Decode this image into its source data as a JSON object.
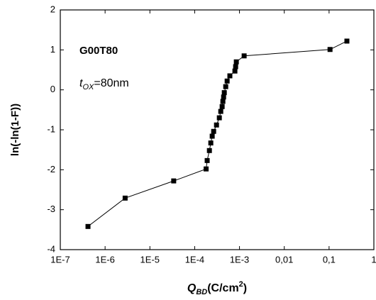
{
  "chart_data": {
    "type": "line",
    "marker": "square",
    "color": "#000000",
    "ylabel": "ln(-ln(1-F))",
    "xlabel": {
      "main": "Q",
      "sub": "BD",
      "unit": "(C/cm",
      "sup": "2",
      "close": ")"
    },
    "annotations": {
      "sample": "G00T80",
      "thickness": {
        "main": "t",
        "sub": "OX",
        "rest": "=80nm"
      }
    },
    "log_x": true,
    "xlim": [
      1e-07,
      1
    ],
    "ylim": [
      -4,
      2
    ],
    "xticks": [
      {
        "value": 1e-07,
        "label": "1E-7"
      },
      {
        "value": 1e-06,
        "label": "1E-6"
      },
      {
        "value": 1e-05,
        "label": "1E-5"
      },
      {
        "value": 0.0001,
        "label": "1E-4"
      },
      {
        "value": 0.001,
        "label": "1E-3"
      },
      {
        "value": 0.01,
        "label": "0,01"
      },
      {
        "value": 0.1,
        "label": "0,1"
      },
      1
    ],
    "yticks": [
      2,
      1,
      0,
      -1,
      -2,
      -3,
      -4
    ],
    "x": [
      4.15e-07,
      2.8e-06,
      3.4e-05,
      0.00018,
      0.00019,
      0.000213,
      0.000229,
      0.000246,
      0.000265,
      0.000307,
      0.000355,
      0.000382,
      0.00041,
      0.000426,
      0.000442,
      0.000458,
      0.000493,
      0.00053,
      0.00061,
      0.00079,
      0.00082,
      0.00085,
      0.00127,
      0.105,
      0.25
    ],
    "values": [
      -3.42,
      -2.71,
      -2.28,
      -1.98,
      -1.77,
      -1.52,
      -1.33,
      -1.16,
      -1.04,
      -0.88,
      -0.7,
      -0.54,
      -0.42,
      -0.29,
      -0.18,
      -0.07,
      0.08,
      0.22,
      0.35,
      0.47,
      0.58,
      0.7,
      0.85,
      1.01,
      1.22
    ]
  }
}
